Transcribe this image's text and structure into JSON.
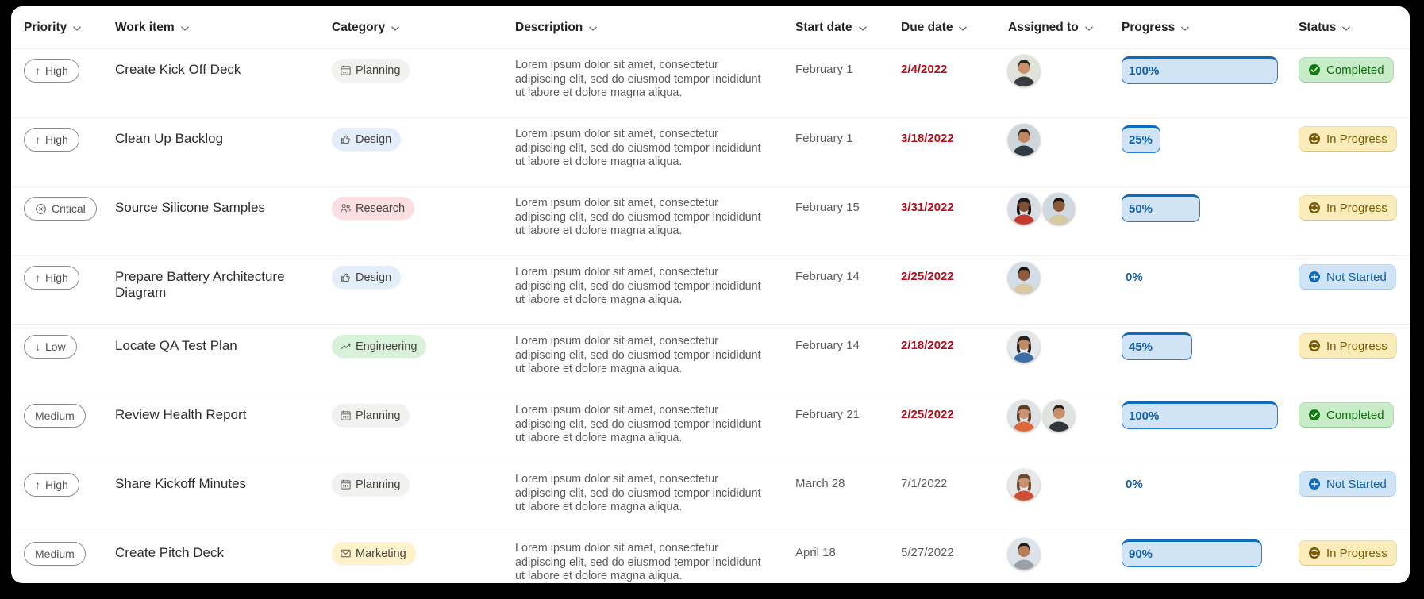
{
  "table": {
    "columns": [
      {
        "label": "Priority"
      },
      {
        "label": "Work item"
      },
      {
        "label": "Category"
      },
      {
        "label": "Description"
      },
      {
        "label": "Start date"
      },
      {
        "label": "Due date"
      },
      {
        "label": "Assigned to"
      },
      {
        "label": "Progress"
      },
      {
        "label": "Status"
      }
    ],
    "rows": [
      {
        "priority": {
          "label": "High",
          "icon": "arrow-up-icon"
        },
        "work_item": "Create Kick Off Deck",
        "category": {
          "label": "Planning",
          "icon": "calendar-icon",
          "theme": "gray"
        },
        "description": "Lorem ipsum dolor sit amet, consectetur adipiscing elit, sed do eiusmod tempor incididunt ut labore et dolore magna aliqua.",
        "start_date": "February 1",
        "due_date": {
          "label": "2/4/2022",
          "overdue": true
        },
        "assignees": [
          {
            "skin": "#c98e6a",
            "hair": "#2b2320",
            "top": "#3a3b40",
            "bg": "#dfe3da",
            "long": false
          }
        ],
        "progress": {
          "label": "100%",
          "value": 100
        },
        "status": {
          "label": "Completed",
          "key": "completed",
          "icon": "check-circle-icon"
        }
      },
      {
        "priority": {
          "label": "High",
          "icon": "arrow-up-icon"
        },
        "work_item": "Clean Up Backlog",
        "category": {
          "label": "Design",
          "icon": "thumb-up-icon",
          "theme": "blue"
        },
        "description": "Lorem ipsum dolor sit amet, consectetur adipiscing elit, sed do eiusmod tempor incididunt ut labore et dolore magna aliqua.",
        "start_date": "February 1",
        "due_date": {
          "label": "3/18/2022",
          "overdue": true
        },
        "assignees": [
          {
            "skin": "#c28562",
            "hair": "#241d1a",
            "top": "#2f3a44",
            "bg": "#cdd6dd",
            "long": false
          }
        ],
        "progress": {
          "label": "25%",
          "value": 25
        },
        "status": {
          "label": "In Progress",
          "key": "in_progress",
          "icon": "sync-circle-icon"
        }
      },
      {
        "priority": {
          "label": "Critical",
          "icon": "critical-icon"
        },
        "work_item": "Source Silicone Samples",
        "category": {
          "label": "Research",
          "icon": "people-icon",
          "theme": "pink"
        },
        "description": "Lorem ipsum dolor sit amet, consectetur adipiscing elit, sed do eiusmod tempor incididunt ut labore et dolore magna aliqua.",
        "start_date": "February 15",
        "due_date": {
          "label": "3/31/2022",
          "overdue": true
        },
        "assignees": [
          {
            "skin": "#7d4f35",
            "hair": "#1f1814",
            "top": "#c23b2e",
            "bg": "#d8dee6",
            "long": true
          },
          {
            "skin": "#8a5a3b",
            "hair": "#17120e",
            "top": "#d9c9a3",
            "bg": "#cfd9e2",
            "long": false
          }
        ],
        "progress": {
          "label": "50%",
          "value": 50
        },
        "status": {
          "label": "In Progress",
          "key": "in_progress",
          "icon": "sync-circle-icon"
        }
      },
      {
        "priority": {
          "label": "High",
          "icon": "arrow-up-icon"
        },
        "work_item": "Prepare Battery Architecture Diagram",
        "category": {
          "label": "Design",
          "icon": "thumb-up-icon",
          "theme": "blue"
        },
        "description": "Lorem ipsum dolor sit amet, consectetur adipiscing elit, sed do eiusmod tempor incididunt ut labore et dolore magna aliqua.",
        "start_date": "February 14",
        "due_date": {
          "label": "2/25/2022",
          "overdue": true
        },
        "assignees": [
          {
            "skin": "#8a5a3b",
            "hair": "#17120e",
            "top": "#d9c9a3",
            "bg": "#d3dde6",
            "long": false
          }
        ],
        "progress": {
          "label": "0%",
          "value": 0
        },
        "status": {
          "label": "Not Started",
          "key": "not_started",
          "icon": "plus-circle-icon"
        }
      },
      {
        "priority": {
          "label": "Low",
          "icon": "arrow-down-icon"
        },
        "work_item": "Locate QA Test Plan",
        "category": {
          "label": "Engineering",
          "icon": "trend-up-icon",
          "theme": "green"
        },
        "description": "Lorem ipsum dolor sit amet, consectetur adipiscing elit, sed do eiusmod tempor incididunt ut labore et dolore magna aliqua.",
        "start_date": "February 14",
        "due_date": {
          "label": "2/18/2022",
          "overdue": true
        },
        "assignees": [
          {
            "skin": "#c08a62",
            "hair": "#2a211c",
            "top": "#3c6ea5",
            "bg": "#e4e7ea",
            "long": true
          }
        ],
        "progress": {
          "label": "45%",
          "value": 45
        },
        "status": {
          "label": "In Progress",
          "key": "in_progress",
          "icon": "sync-circle-icon"
        }
      },
      {
        "priority": {
          "label": "Medium",
          "icon": "none"
        },
        "work_item": "Review Health Report",
        "category": {
          "label": "Planning",
          "icon": "calendar-icon",
          "theme": "gray"
        },
        "description": "Lorem ipsum dolor sit amet, consectetur adipiscing elit, sed do eiusmod tempor incididunt ut labore et dolore magna aliqua.",
        "start_date": "February 21",
        "due_date": {
          "label": "2/25/2022",
          "overdue": true
        },
        "assignees": [
          {
            "skin": "#c99272",
            "hair": "#5b3d28",
            "top": "#d96a3b",
            "bg": "#dfe2e6",
            "long": true
          },
          {
            "skin": "#c98e6a",
            "hair": "#26201c",
            "top": "#33353a",
            "bg": "#e0e4e0",
            "long": false
          }
        ],
        "progress": {
          "label": "100%",
          "value": 100
        },
        "status": {
          "label": "Completed",
          "key": "completed",
          "icon": "check-circle-icon"
        }
      },
      {
        "priority": {
          "label": "High",
          "icon": "arrow-up-icon"
        },
        "work_item": "Share Kickoff Minutes",
        "category": {
          "label": "Planning",
          "icon": "calendar-icon",
          "theme": "gray"
        },
        "description": "Lorem ipsum dolor sit amet, consectetur adipiscing elit, sed do eiusmod tempor incididunt ut labore et dolore magna aliqua.",
        "start_date": "March 28",
        "due_date": {
          "label": "7/1/2022",
          "overdue": false
        },
        "assignees": [
          {
            "skin": "#c99272",
            "hair": "#6b4a2f",
            "top": "#cf4f35",
            "bg": "#e6e8ea",
            "long": true
          }
        ],
        "progress": {
          "label": "0%",
          "value": 0
        },
        "status": {
          "label": "Not Started",
          "key": "not_started",
          "icon": "plus-circle-icon"
        }
      },
      {
        "priority": {
          "label": "Medium",
          "icon": "none"
        },
        "work_item": "Create Pitch Deck",
        "category": {
          "label": "Marketing",
          "icon": "mail-icon",
          "theme": "yellow"
        },
        "description": "Lorem ipsum dolor sit amet, consectetur adipiscing elit, sed do eiusmod tempor incididunt ut labore et dolore magna aliqua.",
        "start_date": "April 18",
        "due_date": {
          "label": "5/27/2022",
          "overdue": false
        },
        "assignees": [
          {
            "skin": "#b67f57",
            "hair": "#241c16",
            "top": "#9aa0a6",
            "bg": "#dce3ea",
            "long": false
          }
        ],
        "progress": {
          "label": "90%",
          "value": 90
        },
        "status": {
          "label": "In Progress",
          "key": "in_progress",
          "icon": "sync-circle-icon"
        }
      }
    ]
  },
  "palette": {
    "accent_blue": "#0f6cbd",
    "progress_fill": "#d0e4f6",
    "progress_text": "#115ea3",
    "overdue_red": "#b10e1c",
    "completed_bg": "#c8ebc8",
    "completed_text": "#0e6f0e",
    "in_progress_bg": "#fbecbb",
    "in_progress_text": "#7a5c00",
    "not_started_bg": "#cfe4f7",
    "not_started_text": "#1160a8",
    "category_gray": "#f1f1f0",
    "category_blue": "#e4eefa",
    "category_pink": "#fbdee2",
    "category_green": "#d9f0d9",
    "category_yellow": "#fdf2ca",
    "muted_text": "#5f5d5b",
    "header_text": "#242424"
  }
}
